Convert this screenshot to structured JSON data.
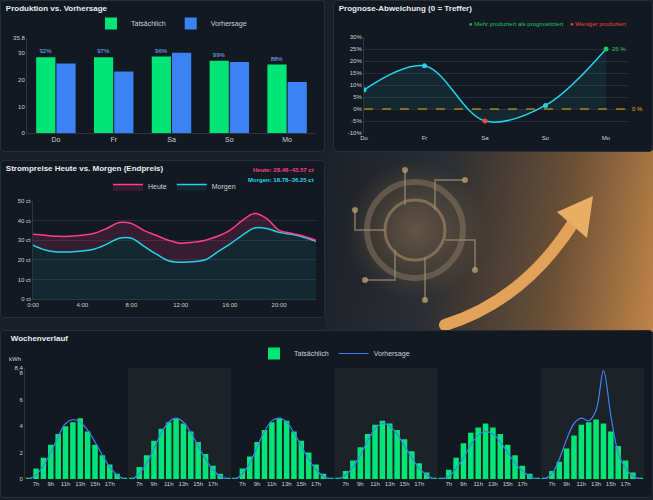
{
  "chart_data": [
    {
      "type": "bar",
      "title": "Produktion vs. Vorhersage",
      "categories": [
        "Do",
        "Fr",
        "Sa",
        "So",
        "Mo"
      ],
      "series": [
        {
          "name": "Tatsächlich",
          "color": "#00e676",
          "values": [
            28.5,
            28.5,
            28.8,
            27.2,
            25.8
          ]
        },
        {
          "name": "Vorhersage",
          "color": "#3b82f6",
          "values": [
            26.2,
            23.2,
            30.2,
            26.8,
            19.2
          ]
        }
      ],
      "annotations": [
        {
          "category": "Do",
          "series": "Tatsächlich",
          "text": "92%"
        },
        {
          "category": "Fr",
          "series": "Tatsächlich",
          "text": "97%"
        },
        {
          "category": "Sa",
          "series": "Tatsächlich",
          "text": "96%"
        },
        {
          "category": "So",
          "series": "Tatsächlich",
          "text": "99%"
        },
        {
          "category": "Mo",
          "series": "Tatsächlich",
          "text": "88%"
        }
      ],
      "ylim": [
        0,
        35.8
      ],
      "yticks": [
        0,
        10,
        20,
        30,
        35.8
      ],
      "grid": false,
      "legend": "top"
    },
    {
      "type": "line",
      "title": "Prognose-Abweichung (0 = Treffer)",
      "notes": [
        {
          "text": "● Mehr produziert als prognostiziert",
          "color": "#22c55e"
        },
        {
          "text": "● Weniger produziert",
          "color": "#ef4444"
        }
      ],
      "categories": [
        "Do",
        "Fr",
        "Sa",
        "So",
        "Mo"
      ],
      "values": [
        8,
        18,
        -5,
        1.5,
        25
      ],
      "color": "#22d3ee",
      "colors": [
        "#22d3ee",
        "#22d3ee",
        "#ef4444",
        "#22d3ee",
        "#22c55e"
      ],
      "marker": "circle",
      "line_style": "solid",
      "reference": {
        "value": 0,
        "label": "0 %",
        "color": "#eab308"
      },
      "annotations": [
        {
          "category": "Mo",
          "text": "25 %",
          "color": "#22c55e"
        }
      ],
      "ylim": [
        -10,
        30
      ],
      "yticks": [
        {
          "value": -10,
          "label": "-10%"
        },
        {
          "value": -5,
          "label": "-5%"
        },
        {
          "value": 0,
          "label": "0%"
        },
        {
          "value": 5,
          "label": "5%"
        },
        {
          "value": 10,
          "label": "10%"
        },
        {
          "value": 15,
          "label": "15%"
        },
        {
          "value": 20,
          "label": "20%"
        },
        {
          "value": 25,
          "label": "25%"
        },
        {
          "value": 30,
          "label": "30%"
        }
      ],
      "grid": true
    },
    {
      "type": "line",
      "title": "Strompreise Heute vs. Morgen (Endpreis)",
      "subtitles": [
        {
          "text": "Heute: 28.46–43.57 ct",
          "color": "#ff3d8b"
        },
        {
          "text": "Morgen: 18.78–36.25 ct",
          "color": "#22d3ee"
        }
      ],
      "x": [
        0,
        1,
        2,
        3,
        4,
        5,
        6,
        7,
        8,
        9,
        10,
        11,
        12,
        13,
        14,
        15,
        16,
        17,
        18,
        19,
        20,
        21,
        22,
        23
      ],
      "series": [
        {
          "name": "Heute",
          "color": "#ff3d8b",
          "values": [
            33,
            32.5,
            32,
            32,
            32.5,
            33.5,
            36,
            39,
            38.5,
            35,
            32.5,
            30,
            28.46,
            29,
            30,
            32,
            35,
            40,
            43.57,
            41,
            35,
            33.5,
            32,
            30
          ]
        },
        {
          "name": "Morgen",
          "color": "#22d3ee",
          "values": [
            27.5,
            25,
            24,
            24,
            24.5,
            25.5,
            28,
            31,
            31,
            27,
            23,
            19.5,
            18.78,
            19,
            20,
            24,
            28,
            32.5,
            36.25,
            36,
            34,
            33,
            31.5,
            29.5
          ]
        }
      ],
      "xlim": [
        0,
        23
      ],
      "xticks": [
        {
          "value": 0,
          "label": "0:00"
        },
        {
          "value": 4,
          "label": "4:00"
        },
        {
          "value": 8,
          "label": "8:00"
        },
        {
          "value": 12,
          "label": "12:00"
        },
        {
          "value": 16,
          "label": "16:00"
        },
        {
          "value": 20,
          "label": "20:00"
        }
      ],
      "ylim": [
        0,
        50
      ],
      "yticks": [
        {
          "value": 0,
          "label": "0 ct"
        },
        {
          "value": 10,
          "label": "10 ct"
        },
        {
          "value": 20,
          "label": "20 ct"
        },
        {
          "value": 30,
          "label": "30 ct"
        },
        {
          "value": 40,
          "label": "40 ct"
        },
        {
          "value": 50,
          "label": "50 ct"
        }
      ],
      "grid": true,
      "legend": "top"
    },
    {
      "type": "bar",
      "title": "Wochenverlauf",
      "y_label": "kWh",
      "categories": [
        null,
        "7h",
        null,
        "9h",
        null,
        "11h",
        null,
        "13h",
        null,
        "15h",
        null,
        "17h",
        null,
        null,
        null,
        "7h",
        null,
        "9h",
        null,
        "11h",
        null,
        "13h",
        null,
        "15h",
        null,
        "17h",
        null,
        null,
        null,
        "7h",
        null,
        "9h",
        null,
        "11h",
        null,
        "13h",
        null,
        "15h",
        null,
        "17h",
        null,
        null,
        null,
        "7h",
        null,
        "9h",
        null,
        "11h",
        null,
        "13h",
        null,
        "15h",
        null,
        "17h",
        null,
        null,
        null,
        "7h",
        null,
        "9h",
        null,
        "11h",
        null,
        "13h",
        null,
        "15h",
        null,
        "17h",
        null,
        null,
        null,
        "7h",
        null,
        "9h",
        null,
        "11h",
        null,
        "13h",
        null,
        "15h",
        null,
        "17h",
        null,
        null
      ],
      "series": [
        {
          "name": "Tatsächlich",
          "type": "bar",
          "color": "#00e676",
          "values": [
            0.1,
            0.8,
            1.6,
            2.6,
            3.4,
            4.0,
            4.3,
            4.6,
            3.6,
            2.6,
            1.8,
            1.1,
            0.4,
            0.1,
            0.1,
            0.9,
            1.8,
            2.9,
            3.8,
            4.3,
            4.6,
            4.2,
            3.6,
            2.8,
            1.9,
            1.0,
            0.4,
            0.1,
            0.1,
            0.8,
            1.7,
            2.8,
            3.7,
            4.3,
            4.6,
            4.4,
            3.6,
            2.9,
            2.0,
            1.1,
            0.4,
            0.1,
            0.1,
            0.6,
            1.4,
            2.4,
            3.4,
            4.1,
            4.4,
            4.2,
            3.7,
            3.0,
            2.1,
            1.2,
            0.5,
            0.1,
            0.1,
            0.7,
            1.6,
            2.7,
            3.5,
            3.9,
            4.2,
            3.9,
            3.4,
            2.6,
            1.8,
            1.0,
            0.4,
            0.1,
            0.1,
            0.6,
            1.3,
            2.3,
            3.3,
            4.1,
            4.3,
            4.5,
            4.2,
            3.6,
            2.5,
            1.4,
            0.5,
            0.1
          ]
        },
        {
          "name": "Vorhersage",
          "type": "line",
          "color": "#3b82f6",
          "values": [
            0,
            0.3,
            1.0,
            2.0,
            3.2,
            4.2,
            4.5,
            4.3,
            3.7,
            2.8,
            1.8,
            0.9,
            0.3,
            0,
            0,
            0.4,
            1.2,
            2.3,
            3.5,
            4.3,
            4.6,
            4.3,
            3.5,
            2.5,
            1.5,
            0.7,
            0.2,
            0,
            0,
            0.4,
            1.2,
            2.4,
            3.6,
            4.4,
            4.6,
            4.3,
            3.5,
            2.5,
            1.5,
            0.7,
            0.2,
            0,
            0,
            0.3,
            0.9,
            1.8,
            2.9,
            3.8,
            4.2,
            4.0,
            3.4,
            2.5,
            1.6,
            0.8,
            0.3,
            0,
            0,
            0.2,
            0.8,
            1.6,
            2.6,
            3.3,
            3.6,
            3.4,
            2.8,
            2.0,
            1.2,
            0.6,
            0.2,
            0,
            0,
            0.4,
            1.5,
            3.0,
            4.2,
            4.6,
            4.4,
            5.2,
            8.2,
            4.8,
            2.0,
            0.8,
            0.2,
            0
          ]
        }
      ],
      "ylim": [
        0,
        8.4
      ],
      "yticks": [
        0,
        2,
        4,
        6,
        8,
        {
          "value": 8.4,
          "label": "8,4"
        }
      ],
      "grid": false,
      "legend": "top"
    }
  ]
}
